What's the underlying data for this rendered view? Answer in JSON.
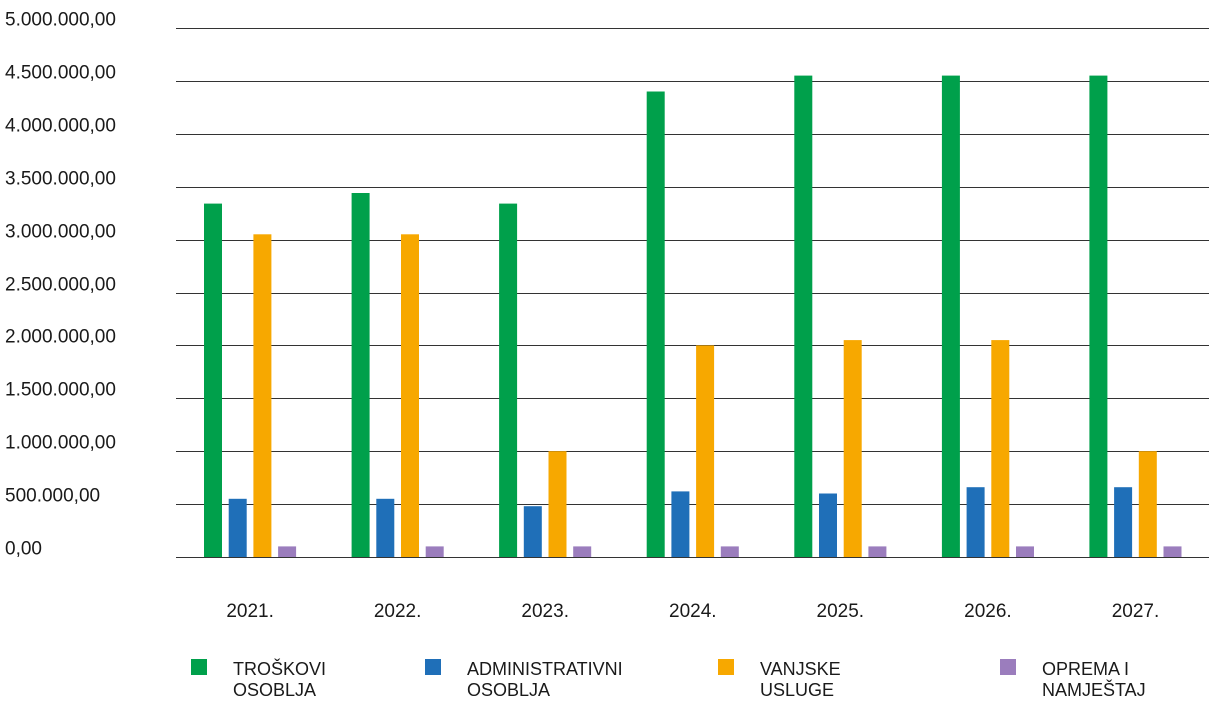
{
  "chart_data": {
    "type": "bar",
    "title": "",
    "xlabel": "",
    "ylabel": "",
    "ylim": [
      0,
      5000000
    ],
    "ytick_step": 500000,
    "y_tick_labels": [
      "0,00",
      "500.000,00",
      "1.000.000,00",
      "1.500.000,00",
      "2.000.000,00",
      "2.500.000,00",
      "3.000.000,00",
      "3.500.000,00",
      "4.000.000,00",
      "4.500.000,00",
      "5.000.000,00"
    ],
    "grid": true,
    "legend_position": "bottom",
    "categories": [
      "2021.",
      "2022.",
      "2023.",
      "2024.",
      "2025.",
      "2026.",
      "2027."
    ],
    "series": [
      {
        "name": "TROŠKOVI OSOBLJA",
        "legend_lines": [
          "TROŠKOVI",
          "OSOBLJA"
        ],
        "color": "#00a04b",
        "values": [
          3340000,
          3440000,
          3340000,
          4400000,
          4550000,
          4550000,
          4550000
        ]
      },
      {
        "name": "ADMINISTRATIVNI OSOBLJA",
        "legend_lines": [
          "ADMINISTRATIVNI",
          "OSOBLJA"
        ],
        "color": "#1f6fb8",
        "values": [
          550000,
          550000,
          480000,
          620000,
          600000,
          660000,
          660000
        ]
      },
      {
        "name": "VANJSKE USLUGE",
        "legend_lines": [
          "VANJSKE",
          "USLUGE"
        ],
        "color": "#f7a800",
        "values": [
          3050000,
          3050000,
          1000000,
          2000000,
          2050000,
          2050000,
          1000000
        ]
      },
      {
        "name": "OPREMA I NAMJEŠTAJ",
        "legend_lines": [
          "OPREMA I",
          "NAMJEŠTAJ"
        ],
        "color": "#9b7dbd",
        "values": [
          100000,
          100000,
          100000,
          100000,
          100000,
          100000,
          100000
        ]
      }
    ]
  },
  "colors": {
    "gridline": "#333333",
    "text": "#1a1a1a"
  }
}
